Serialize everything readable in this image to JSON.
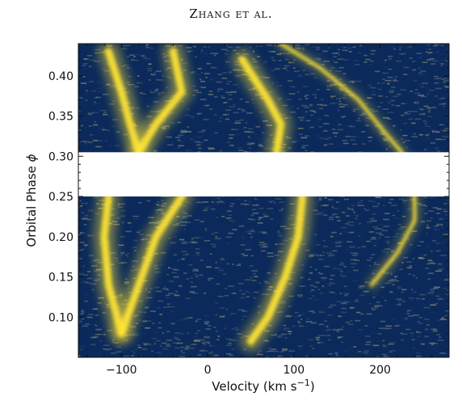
{
  "header": "Zhang et al.",
  "chart_data": {
    "type": "heatmap",
    "title": "",
    "xlabel_main": "Velocity (km s",
    "xlabel_sup": "−1",
    "xlabel_tail": ")",
    "ylabel_main": "Orbital Phase ",
    "ylabel_symbol": "ϕ",
    "xlim": [
      -150,
      280
    ],
    "ylim": [
      0.05,
      0.44
    ],
    "x_ticks": [
      -100,
      0,
      100,
      200
    ],
    "x_tick_labels": [
      "−100",
      "0",
      "100",
      "200"
    ],
    "y_ticks": [
      0.1,
      0.15,
      0.2,
      0.25,
      0.3,
      0.35,
      0.4
    ],
    "y_tick_labels": [
      "0.10",
      "0.15",
      "0.20",
      "0.25",
      "0.30",
      "0.35",
      "0.40"
    ],
    "gap": [
      0.25,
      0.305
    ],
    "colors": {
      "low": "#0b2a5b",
      "mid": "#8a8a6a",
      "high": "#ffe433"
    },
    "features": [
      {
        "name": "arc",
        "points": [
          [
            85,
            0.44
          ],
          [
            130,
            0.41
          ],
          [
            175,
            0.37
          ],
          [
            205,
            0.33
          ],
          [
            225,
            0.305
          ],
          [
            240,
            0.25
          ],
          [
            240,
            0.22
          ],
          [
            220,
            0.18
          ],
          [
            190,
            0.14
          ]
        ]
      },
      {
        "name": "left-band-upper",
        "points": [
          [
            -115,
            0.43
          ],
          [
            -100,
            0.38
          ],
          [
            -90,
            0.34
          ],
          [
            -80,
            0.305
          ]
        ]
      },
      {
        "name": "left-band-lower",
        "points": [
          [
            -115,
            0.25
          ],
          [
            -120,
            0.2
          ],
          [
            -115,
            0.14
          ],
          [
            -100,
            0.08
          ]
        ]
      },
      {
        "name": "mid-band-upper",
        "points": [
          [
            -40,
            0.43
          ],
          [
            -30,
            0.38
          ],
          [
            -60,
            0.34
          ],
          [
            -80,
            0.305
          ]
        ]
      },
      {
        "name": "mid-band-lower",
        "points": [
          [
            -30,
            0.25
          ],
          [
            -60,
            0.2
          ],
          [
            -80,
            0.14
          ],
          [
            -100,
            0.08
          ]
        ]
      },
      {
        "name": "right-band-upper",
        "points": [
          [
            40,
            0.42
          ],
          [
            70,
            0.37
          ],
          [
            85,
            0.34
          ],
          [
            80,
            0.305
          ]
        ]
      },
      {
        "name": "right-band-lower",
        "points": [
          [
            110,
            0.25
          ],
          [
            105,
            0.2
          ],
          [
            90,
            0.15
          ],
          [
            70,
            0.1
          ],
          [
            50,
            0.07
          ]
        ]
      }
    ]
  }
}
